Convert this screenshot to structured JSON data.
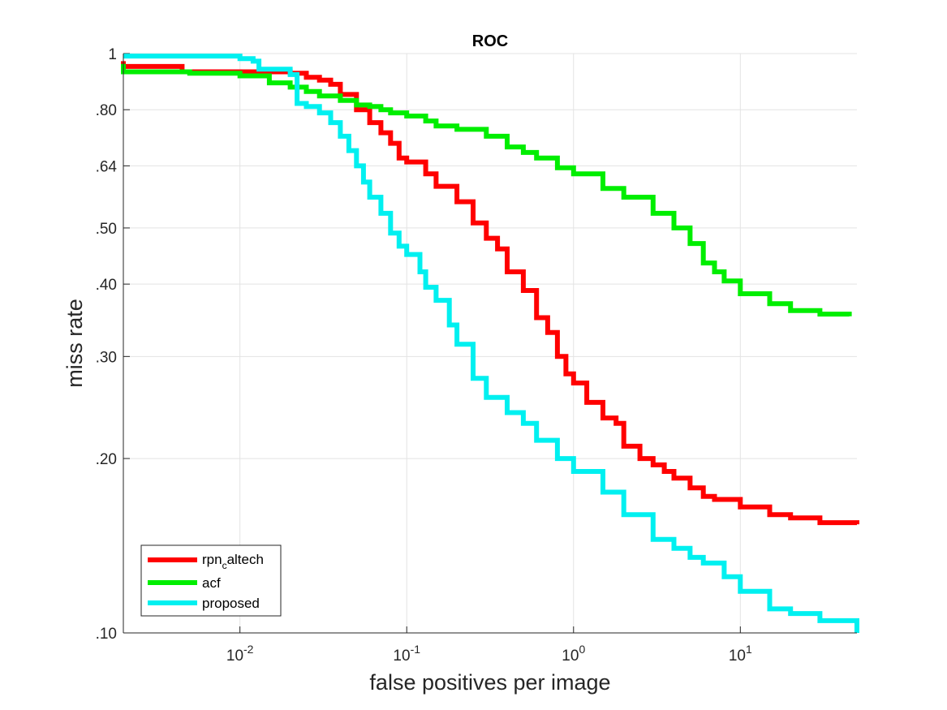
{
  "chart_data": {
    "type": "line",
    "title": "ROC",
    "xlabel": "false positives per image",
    "ylabel": "miss rate",
    "xscale": "log",
    "yscale": "log",
    "xlim": [
      0.002,
      50
    ],
    "ylim": [
      0.1,
      1
    ],
    "grid": true,
    "legend_position": "bottom-left",
    "x_ticks": [
      {
        "value": 0.01,
        "base": "10",
        "exp": "-2"
      },
      {
        "value": 0.1,
        "base": "10",
        "exp": "-1"
      },
      {
        "value": 1,
        "base": "10",
        "exp": "0"
      },
      {
        "value": 10,
        "base": "10",
        "exp": "1"
      }
    ],
    "y_ticks": [
      {
        "value": 0.1,
        "label": ".10"
      },
      {
        "value": 0.2,
        "label": ".20"
      },
      {
        "value": 0.3,
        "label": ".30"
      },
      {
        "value": 0.4,
        "label": ".40"
      },
      {
        "value": 0.5,
        "label": ".50"
      },
      {
        "value": 0.64,
        "label": ".64"
      },
      {
        "value": 0.8,
        "label": ".80"
      },
      {
        "value": 1,
        "label": "1"
      }
    ],
    "series": [
      {
        "name": "rpn_caltech",
        "legend_main": "rpn",
        "legend_sub": "c",
        "legend_rest": "altech",
        "color": "#ff0000",
        "points": [
          [
            0.002,
            0.97
          ],
          [
            0.002,
            0.95
          ],
          [
            0.0044,
            0.95
          ],
          [
            0.0045,
            0.93
          ],
          [
            0.01,
            0.93
          ],
          [
            0.02,
            0.925
          ],
          [
            0.025,
            0.91
          ],
          [
            0.03,
            0.9
          ],
          [
            0.035,
            0.885
          ],
          [
            0.04,
            0.85
          ],
          [
            0.05,
            0.8
          ],
          [
            0.06,
            0.76
          ],
          [
            0.07,
            0.73
          ],
          [
            0.08,
            0.7
          ],
          [
            0.09,
            0.66
          ],
          [
            0.1,
            0.65
          ],
          [
            0.13,
            0.62
          ],
          [
            0.15,
            0.59
          ],
          [
            0.2,
            0.555
          ],
          [
            0.25,
            0.51
          ],
          [
            0.3,
            0.48
          ],
          [
            0.35,
            0.46
          ],
          [
            0.4,
            0.42
          ],
          [
            0.5,
            0.39
          ],
          [
            0.6,
            0.35
          ],
          [
            0.7,
            0.33
          ],
          [
            0.8,
            0.3
          ],
          [
            0.9,
            0.28
          ],
          [
            1.0,
            0.27
          ],
          [
            1.2,
            0.25
          ],
          [
            1.5,
            0.235
          ],
          [
            1.8,
            0.23
          ],
          [
            2.0,
            0.21
          ],
          [
            2.5,
            0.2
          ],
          [
            3.0,
            0.195
          ],
          [
            3.5,
            0.19
          ],
          [
            4.0,
            0.185
          ],
          [
            5.0,
            0.178
          ],
          [
            6.0,
            0.172
          ],
          [
            7.0,
            0.17
          ],
          [
            10.0,
            0.165
          ],
          [
            15.0,
            0.16
          ],
          [
            20.0,
            0.158
          ],
          [
            30.0,
            0.155
          ],
          [
            50.0,
            0.154
          ]
        ]
      },
      {
        "name": "acf",
        "legend_main": "acf",
        "color": "#00ee00",
        "points": [
          [
            0.002,
            0.96
          ],
          [
            0.002,
            0.93
          ],
          [
            0.005,
            0.925
          ],
          [
            0.01,
            0.915
          ],
          [
            0.015,
            0.89
          ],
          [
            0.02,
            0.875
          ],
          [
            0.025,
            0.86
          ],
          [
            0.03,
            0.845
          ],
          [
            0.04,
            0.83
          ],
          [
            0.05,
            0.815
          ],
          [
            0.06,
            0.81
          ],
          [
            0.07,
            0.8
          ],
          [
            0.08,
            0.79
          ],
          [
            0.1,
            0.78
          ],
          [
            0.13,
            0.765
          ],
          [
            0.15,
            0.75
          ],
          [
            0.2,
            0.74
          ],
          [
            0.3,
            0.72
          ],
          [
            0.4,
            0.69
          ],
          [
            0.5,
            0.675
          ],
          [
            0.6,
            0.66
          ],
          [
            0.8,
            0.635
          ],
          [
            1.0,
            0.62
          ],
          [
            1.5,
            0.585
          ],
          [
            2.0,
            0.565
          ],
          [
            3.0,
            0.53
          ],
          [
            4.0,
            0.5
          ],
          [
            5.0,
            0.47
          ],
          [
            6.0,
            0.435
          ],
          [
            7.0,
            0.42
          ],
          [
            8.0,
            0.405
          ],
          [
            10.0,
            0.385
          ],
          [
            15.0,
            0.37
          ],
          [
            20.0,
            0.36
          ],
          [
            30.0,
            0.355
          ],
          [
            45.0,
            0.352
          ]
        ]
      },
      {
        "name": "proposed",
        "legend_main": "proposed",
        "color": "#00f0f0",
        "points": [
          [
            0.002,
            0.99
          ],
          [
            0.005,
            0.99
          ],
          [
            0.01,
            0.98
          ],
          [
            0.012,
            0.97
          ],
          [
            0.013,
            0.94
          ],
          [
            0.02,
            0.92
          ],
          [
            0.022,
            0.87
          ],
          [
            0.022,
            0.82
          ],
          [
            0.025,
            0.81
          ],
          [
            0.03,
            0.79
          ],
          [
            0.035,
            0.76
          ],
          [
            0.04,
            0.72
          ],
          [
            0.045,
            0.68
          ],
          [
            0.05,
            0.64
          ],
          [
            0.055,
            0.6
          ],
          [
            0.06,
            0.565
          ],
          [
            0.07,
            0.53
          ],
          [
            0.08,
            0.49
          ],
          [
            0.09,
            0.465
          ],
          [
            0.1,
            0.45
          ],
          [
            0.12,
            0.42
          ],
          [
            0.13,
            0.395
          ],
          [
            0.15,
            0.375
          ],
          [
            0.18,
            0.34
          ],
          [
            0.2,
            0.315
          ],
          [
            0.25,
            0.275
          ],
          [
            0.3,
            0.255
          ],
          [
            0.4,
            0.24
          ],
          [
            0.5,
            0.23
          ],
          [
            0.6,
            0.215
          ],
          [
            0.8,
            0.2
          ],
          [
            1.0,
            0.19
          ],
          [
            1.5,
            0.175
          ],
          [
            2.0,
            0.16
          ],
          [
            3.0,
            0.145
          ],
          [
            4.0,
            0.14
          ],
          [
            5.0,
            0.135
          ],
          [
            6.0,
            0.132
          ],
          [
            8.0,
            0.125
          ],
          [
            10.0,
            0.118
          ],
          [
            15.0,
            0.11
          ],
          [
            20.0,
            0.108
          ],
          [
            30.0,
            0.105
          ],
          [
            50.0,
            0.1
          ]
        ]
      }
    ]
  }
}
